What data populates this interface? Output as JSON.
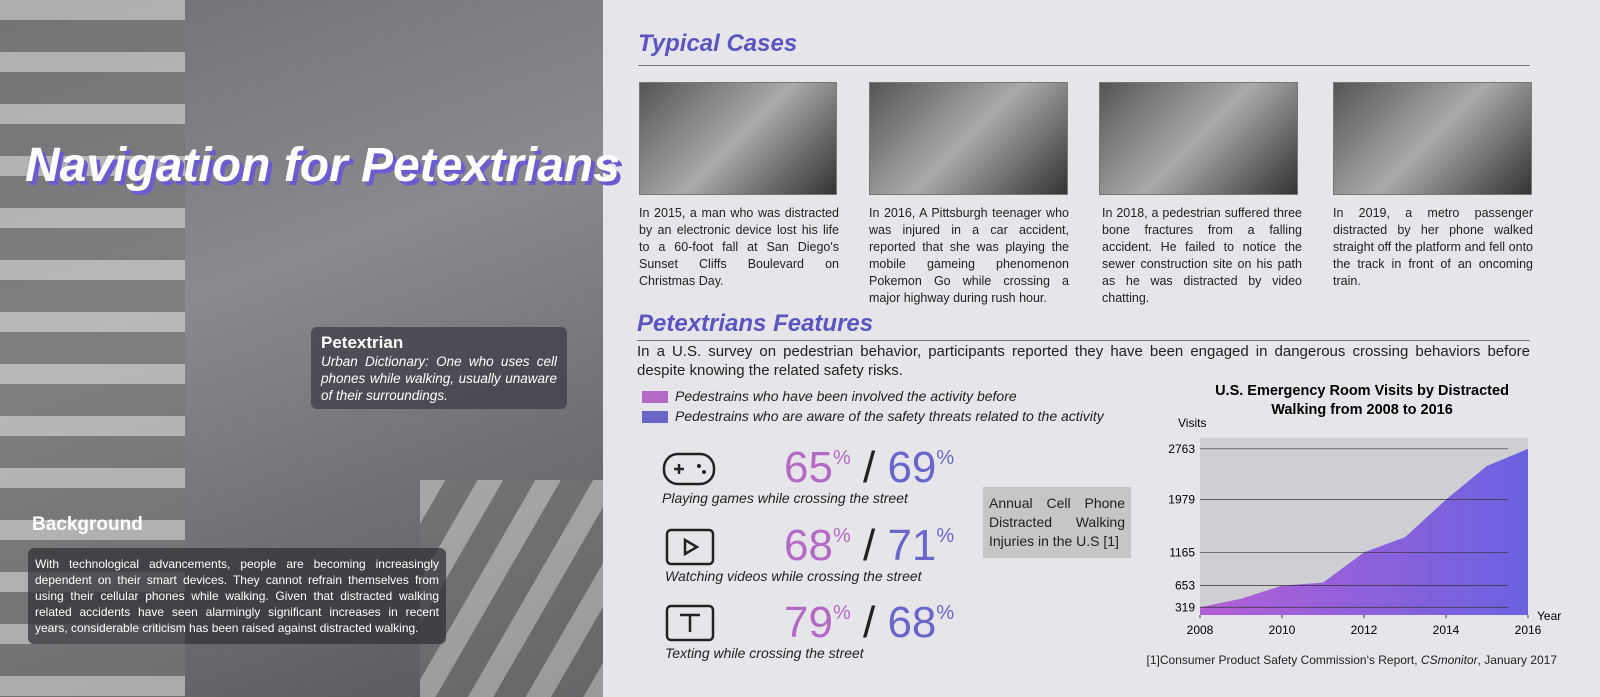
{
  "title": "Navigation for Petextrians",
  "definition": {
    "term": "Petextrian",
    "text": "Urban Dictionary: One who uses cell phones while walking, usually unaware of their surroundings."
  },
  "background": {
    "heading": "Background",
    "text": "With technological advancements, people are becoming increasingly dependent on their smart devices. They cannot refrain themselves from using their cellular phones while walking. Given that distracted walking related accidents have seen alarmingly significant increases in recent years, considerable criticism has been raised against distracted walking."
  },
  "cases": {
    "heading": "Typical Cases",
    "items": [
      "In 2015, a man who was distracted by an electronic device lost his life to a 60-foot fall at San Diego's Sunset Cliffs Boulevard on Christmas Day.",
      "In 2016, A Pittsburgh teenager who was injured in a car accident, reported that she was playing the mobile gameing phenomenon Pokemon Go while crossing a major highway during rush hour.",
      "In 2018, a pedestrian suffered three bone fractures from a falling accident. He failed to notice the sewer construction site on his path as he was distracted by video chatting.",
      "In 2019, a metro passenger distracted by her phone walked straight off the platform and fell onto the track in front of an oncoming train."
    ]
  },
  "features": {
    "heading": "Petextrians Features",
    "intro": "In a U.S. survey on pedestrian behavior, participants reported they have been engaged in dangerous crossing behaviors before despite knowing the related safety risks.",
    "legend": [
      "Pedestrains who have been involved the activity before",
      "Pedestrains who are aware of the safety threats related to the activity"
    ],
    "colors": [
      "#b36ac4",
      "#6a66c9"
    ],
    "unit": "%",
    "items": [
      {
        "label": "Playing games while crossing the street",
        "involved": 65,
        "aware": 69
      },
      {
        "label": "Watching videos while crossing the street",
        "involved": 68,
        "aware": 71
      },
      {
        "label": "Texting while crossing the street",
        "involved": 79,
        "aware": 68
      }
    ]
  },
  "note": "Annual Cell Phone Distracted Walking Injuries in the U.S [1]",
  "chart_data": {
    "type": "area",
    "title": "U.S. Emergency Room Visits by Distracted Walking from 2008 to 2016",
    "y_label": "Visits",
    "x_label": "Year",
    "x": [
      2008,
      2009,
      2010,
      2011,
      2012,
      2013,
      2014,
      2015,
      2016
    ],
    "values": [
      319,
      450,
      653,
      700,
      1165,
      1400,
      1979,
      2500,
      2763
    ],
    "colors": [
      "#b45fd6",
      "#6a62e0"
    ],
    "xlim": [
      2008,
      2016
    ],
    "ylim": [
      200,
      2930
    ],
    "xticks": [
      2008,
      2010,
      2012,
      2014,
      2016
    ],
    "yticks": [
      319,
      653,
      1165,
      1979,
      2763
    ]
  },
  "footnote": [
    "[1]Consumer Product Safety Commission's Report, ",
    "CSmonitor",
    ", January 2017"
  ]
}
